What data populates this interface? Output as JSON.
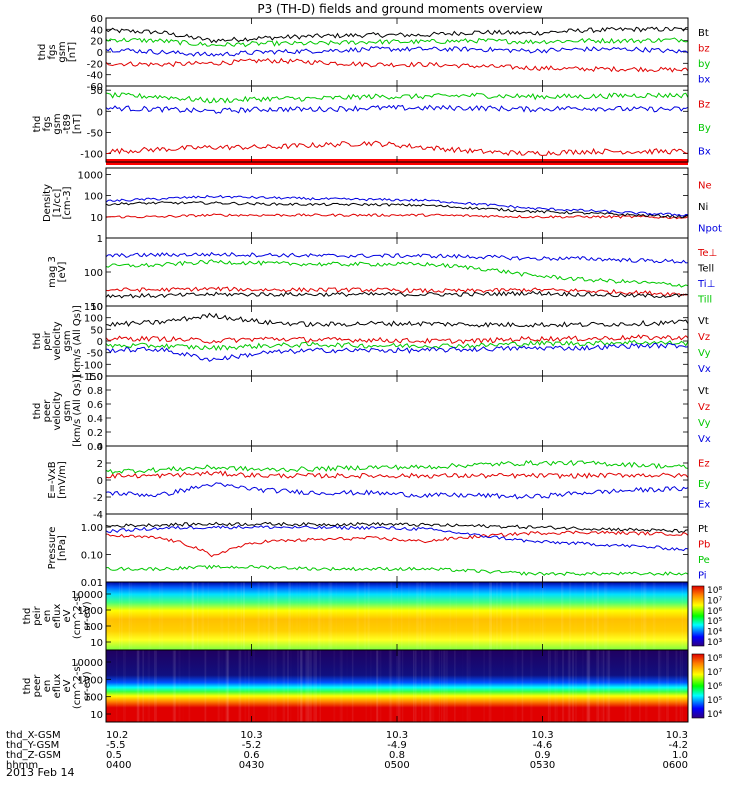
{
  "title": "P3 (TH-D) fields and ground moments overview",
  "date_label": "2013 Feb 14",
  "ephemeris": {
    "row_labels": [
      "thd_X-GSM",
      "thd_Y-GSM",
      "thd_Z-GSM",
      "hhmm"
    ],
    "columns": [
      {
        "values": [
          "10.2",
          "-5.5",
          "0.5",
          "0400"
        ]
      },
      {
        "values": [
          "10.3",
          "-5.2",
          "0.6",
          "0430"
        ]
      },
      {
        "values": [
          "10.3",
          "-4.9",
          "0.8",
          "0500"
        ]
      },
      {
        "values": [
          "10.3",
          "-4.6",
          "0.9",
          "0530"
        ]
      },
      {
        "values": [
          "10.3",
          "-4.2",
          "1.0",
          "0600"
        ]
      }
    ]
  },
  "chart_data": [
    {
      "type": "line",
      "ylabel": [
        "thd",
        "fgs",
        "gsm",
        "[nT]"
      ],
      "yticks": [
        "60",
        "40",
        "20",
        "0",
        "-20",
        "-40",
        "-60"
      ],
      "ylim": [
        -60,
        60
      ],
      "series": [
        {
          "name": "Bt",
          "color": "#000000",
          "values": [
            38,
            35,
            20,
            25,
            28,
            30,
            30,
            35,
            33,
            38,
            40,
            40
          ]
        },
        {
          "name": "bz",
          "color": "#e00000",
          "values": [
            -20,
            -22,
            -20,
            -15,
            -18,
            -22,
            -22,
            -25,
            -28,
            -30,
            -30,
            -32
          ]
        },
        {
          "name": "by",
          "color": "#00c800",
          "values": [
            22,
            20,
            12,
            15,
            15,
            18,
            18,
            20,
            18,
            20,
            20,
            22
          ]
        },
        {
          "name": "bx",
          "color": "#0000e0",
          "values": [
            5,
            0,
            -5,
            0,
            2,
            5,
            5,
            5,
            2,
            5,
            5,
            0
          ]
        }
      ]
    },
    {
      "type": "line",
      "ylabel": [
        "thd",
        "fgs",
        "gsm",
        "-t89",
        "[nT]"
      ],
      "yticks": [
        "50",
        "0",
        "-50",
        "-100"
      ],
      "ylim": [
        -120,
        60
      ],
      "series": [
        {
          "name": "Bz",
          "color": "#e00000",
          "values": [
            -95,
            -90,
            -85,
            -85,
            -80,
            -75,
            -85,
            -95,
            -100,
            -95,
            -95,
            -95
          ]
        },
        {
          "name": "By",
          "color": "#00c800",
          "values": [
            38,
            35,
            25,
            30,
            30,
            35,
            35,
            38,
            35,
            35,
            38,
            38
          ]
        },
        {
          "name": "Bx",
          "color": "#0000e0",
          "values": [
            8,
            5,
            0,
            5,
            5,
            8,
            8,
            8,
            5,
            8,
            5,
            5
          ]
        }
      ]
    },
    {
      "type": "line",
      "scale": "log",
      "ylabel": [
        "Density",
        "[1/cc]",
        "[cm-3]"
      ],
      "yticks": [
        "1000",
        "100",
        "10",
        "1"
      ],
      "ylim": [
        1,
        2000
      ],
      "series": [
        {
          "name": "Ne",
          "color": "#e00000",
          "values": [
            10,
            10,
            12,
            12,
            12,
            12,
            12,
            11,
            10,
            10,
            10,
            9
          ]
        },
        {
          "name": "Ni",
          "color": "#000000",
          "values": [
            40,
            45,
            45,
            40,
            38,
            38,
            35,
            25,
            18,
            15,
            12,
            10
          ]
        },
        {
          "name": "Npot",
          "color": "#0000e0",
          "values": [
            55,
            70,
            90,
            80,
            70,
            65,
            60,
            40,
            25,
            20,
            15,
            12
          ]
        }
      ]
    },
    {
      "type": "line",
      "scale": "log",
      "ylabel": [
        "mag 3",
        "[eV]"
      ],
      "yticks": [
        "100",
        "10"
      ],
      "ylim": [
        10,
        1000
      ],
      "series": [
        {
          "name": "Te⊥",
          "color": "#e00000",
          "values": [
            30,
            30,
            32,
            30,
            30,
            30,
            28,
            28,
            30,
            28,
            25,
            22
          ]
        },
        {
          "name": "Tell",
          "color": "#000000",
          "values": [
            20,
            20,
            22,
            22,
            22,
            22,
            22,
            22,
            24,
            22,
            20,
            20
          ]
        },
        {
          "name": "Ti⊥",
          "color": "#0000e0",
          "values": [
            300,
            320,
            330,
            320,
            300,
            300,
            300,
            280,
            250,
            250,
            220,
            200
          ]
        },
        {
          "name": "Till",
          "color": "#00c800",
          "values": [
            150,
            160,
            200,
            180,
            170,
            170,
            170,
            130,
            80,
            60,
            50,
            40
          ]
        }
      ]
    },
    {
      "type": "line",
      "ylabel": [
        "thd",
        "peir",
        "velocity",
        "gsm",
        "[km/s (All Qs)]"
      ],
      "yticks": [
        "150",
        "100",
        "50",
        "0",
        "-50",
        "-100",
        "-150"
      ],
      "ylim": [
        -150,
        150
      ],
      "series": [
        {
          "name": "Vt",
          "color": "#000000",
          "values": [
            70,
            80,
            110,
            80,
            70,
            75,
            75,
            70,
            70,
            70,
            75,
            80
          ]
        },
        {
          "name": "Vz",
          "color": "#e00000",
          "values": [
            10,
            10,
            0,
            10,
            5,
            5,
            0,
            0,
            10,
            10,
            15,
            15
          ]
        },
        {
          "name": "Vy",
          "color": "#00c800",
          "values": [
            -20,
            -20,
            -30,
            -20,
            -15,
            -20,
            -20,
            -20,
            -10,
            -10,
            -5,
            -10
          ]
        },
        {
          "name": "Vx",
          "color": "#0000e0",
          "values": [
            -40,
            -35,
            -80,
            -50,
            -40,
            -40,
            -40,
            -35,
            -30,
            -30,
            -20,
            -20
          ]
        }
      ]
    },
    {
      "type": "line",
      "ylabel": [
        "thd",
        "peer",
        "velocity",
        "gsm",
        "[km/s (All Qs)]"
      ],
      "yticks": [
        "1.0",
        "0.8",
        "0.6",
        "0.4",
        "0.2",
        "0.0"
      ],
      "ylim": [
        0,
        1
      ],
      "series": [
        {
          "name": "Vt",
          "color": "#000000",
          "values": []
        },
        {
          "name": "Vz",
          "color": "#e00000",
          "values": []
        },
        {
          "name": "Vy",
          "color": "#00c800",
          "values": []
        },
        {
          "name": "Vx",
          "color": "#0000e0",
          "values": []
        }
      ]
    },
    {
      "type": "line",
      "ylabel": [
        "E=-VxB",
        "[mV/m]"
      ],
      "yticks": [
        "4",
        "2",
        "0",
        "-2",
        "-4"
      ],
      "ylim": [
        -4,
        4
      ],
      "series": [
        {
          "name": "Ez",
          "color": "#e00000",
          "values": [
            0.5,
            0.5,
            0.8,
            0.5,
            0.5,
            0.5,
            0.5,
            0.5,
            0.5,
            0.5,
            0.6,
            0.5
          ]
        },
        {
          "name": "Ey",
          "color": "#00c800",
          "values": [
            1.0,
            1.2,
            1.5,
            1.2,
            1.3,
            1.5,
            1.5,
            1.8,
            2.0,
            2.0,
            1.8,
            1.5
          ]
        },
        {
          "name": "Ex",
          "color": "#0000e0",
          "values": [
            -1.5,
            -1.8,
            -0.5,
            -1.2,
            -1.5,
            -1.5,
            -1.8,
            -1.8,
            -2.0,
            -1.5,
            -1.2,
            -1.0
          ]
        }
      ]
    },
    {
      "type": "line",
      "scale": "log",
      "ylabel": [
        "Pressure",
        "[nPa]"
      ],
      "yticks": [
        "1.00",
        "0.10",
        "0.01"
      ],
      "ylim": [
        0.01,
        3
      ],
      "series": [
        {
          "name": "Pt",
          "color": "#000000",
          "values": [
            1.1,
            1.2,
            1.3,
            1.3,
            1.25,
            1.3,
            1.2,
            1.1,
            1.0,
            0.9,
            0.8,
            0.7
          ]
        },
        {
          "name": "Pb",
          "color": "#e00000",
          "values": [
            0.5,
            0.4,
            0.08,
            0.3,
            0.35,
            0.4,
            0.3,
            0.45,
            0.6,
            0.65,
            0.6,
            0.55
          ]
        },
        {
          "name": "Pe",
          "color": "#00c800",
          "values": [
            0.03,
            0.03,
            0.035,
            0.035,
            0.03,
            0.03,
            0.03,
            0.025,
            0.02,
            0.02,
            0.02,
            0.02
          ]
        },
        {
          "name": "Pi",
          "color": "#0000e0",
          "values": [
            0.7,
            0.9,
            1.0,
            1.0,
            0.95,
            0.95,
            0.85,
            0.5,
            0.3,
            0.25,
            0.2,
            0.15
          ]
        }
      ]
    },
    {
      "type": "heatmap",
      "ylabel": [
        "thd",
        "peir",
        "en",
        "eflux",
        "eV",
        "(cm^2-s-",
        "sr-eV)"
      ],
      "yticks": [
        "10000",
        "1000",
        "100",
        "10"
      ],
      "colorbar_ticks": [
        "10⁸",
        "10⁷",
        "10⁶",
        "10⁵",
        "10⁴",
        "10³"
      ]
    },
    {
      "type": "heatmap",
      "ylabel": [
        "thd",
        "peer",
        "en",
        "eflux",
        "eV",
        "(cm^2-s-",
        "sr-eV)"
      ],
      "yticks": [
        "10000",
        "1000",
        "100",
        "10"
      ],
      "colorbar_ticks": [
        "10⁸",
        "10⁷",
        "10⁶",
        "10⁵",
        "10⁴"
      ]
    }
  ]
}
